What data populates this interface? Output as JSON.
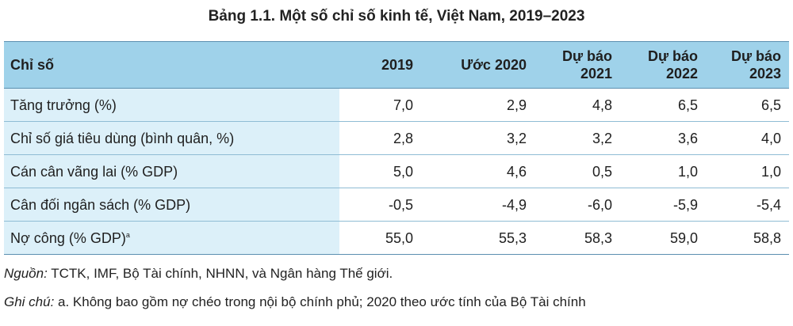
{
  "title": "Bảng 1.1. Một số chỉ số kinh tế, Việt Nam, 2019–2023",
  "table": {
    "headers": [
      [
        "Chỉ số"
      ],
      [
        "2019"
      ],
      [
        "Ước 2020"
      ],
      [
        "Dự báo",
        "2021"
      ],
      [
        "Dự báo",
        "2022"
      ],
      [
        "Dự báo",
        "2023"
      ]
    ],
    "rows": [
      {
        "label": "Tăng trưởng (%)",
        "sup": "",
        "values": [
          "7,0",
          "2,9",
          "4,8",
          "6,5",
          "6,5"
        ]
      },
      {
        "label": "Chỉ số giá tiêu dùng (bình quân, %)",
        "sup": "",
        "values": [
          "2,8",
          "3,2",
          "3,2",
          "3,6",
          "4,0"
        ]
      },
      {
        "label": "Cán cân vãng lai (% GDP)",
        "sup": "",
        "values": [
          "5,0",
          "4,6",
          "0,5",
          "1,0",
          "1,0"
        ]
      },
      {
        "label": "Cân đối ngân sách (% GDP)",
        "sup": "",
        "values": [
          "-0,5",
          "-4,9",
          "-6,0",
          "-5,9",
          "-5,4"
        ]
      },
      {
        "label": "Nợ công (% GDP)",
        "sup": "a",
        "values": [
          "55,0",
          "55,3",
          "58,3",
          "59,0",
          "58,8"
        ]
      }
    ]
  },
  "source": {
    "prefix": "Nguồn:",
    "text": " TCTK, IMF, Bộ Tài chính, NHNN, và Ngân hàng Thế giới."
  },
  "note": {
    "prefix": "Ghi chú:",
    "text": " a. Không bao gồm nợ chéo trong nội bộ chính phủ; 2020 theo ước tính của Bộ Tài chính"
  }
}
